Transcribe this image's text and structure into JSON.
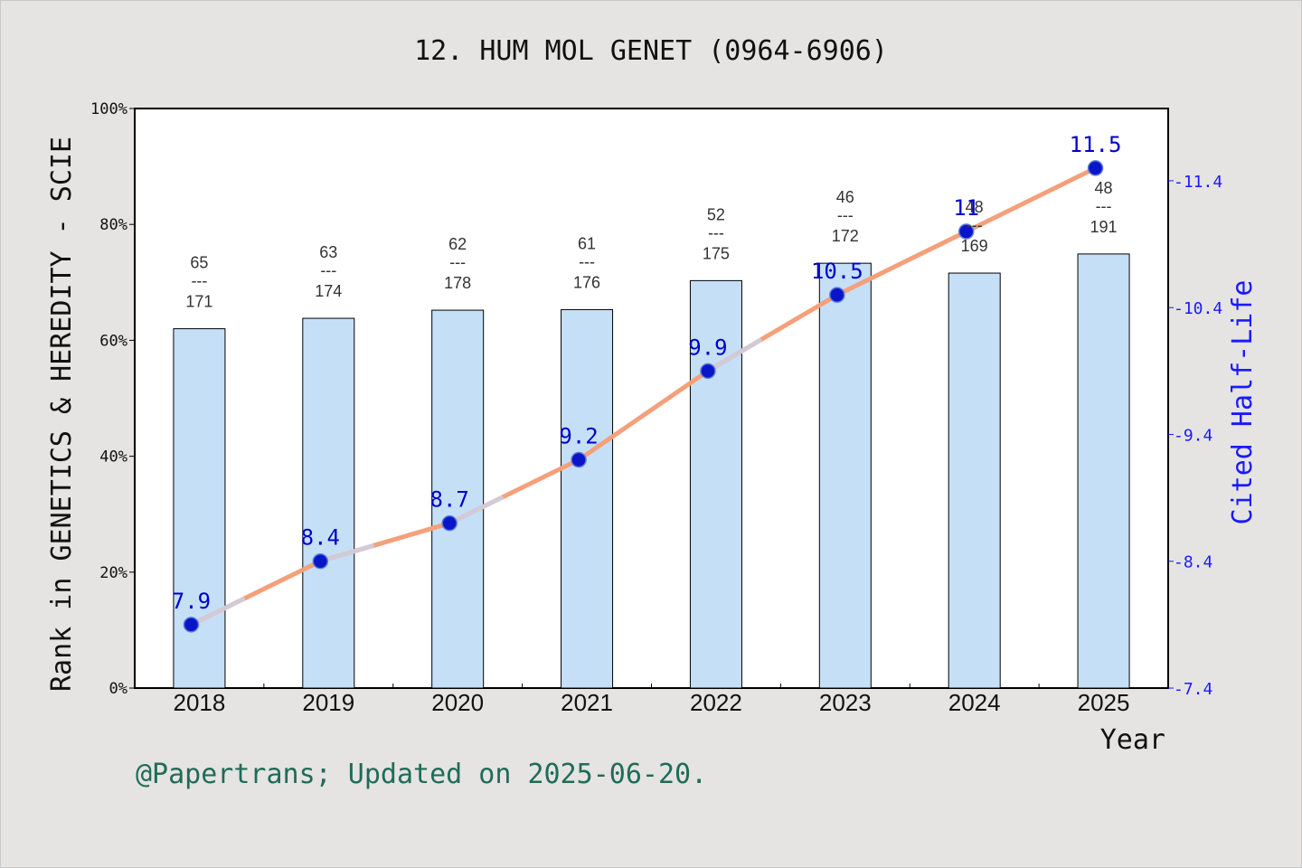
{
  "title": "12. HUM MOL GENET (0964-6906)",
  "footer": "@Papertrans; Updated on 2025-06-20.",
  "colors": {
    "bar_fill": "#c5dff7",
    "line": "#f4a07a",
    "line_light": "#cfcfe0",
    "marker": "#0a14c8",
    "right_axis": "#1a1aff",
    "background": "#e5e4e2"
  },
  "chart_data": {
    "type": "bar+line",
    "categories": [
      "2018",
      "2019",
      "2020",
      "2021",
      "2022",
      "2023",
      "2024",
      "2025"
    ],
    "xlabel": "Year",
    "ylabel": "Rank in GENETICS & HEREDITY - SCIE",
    "y2label": "Cited Half-Life",
    "ylim": [
      0,
      100
    ],
    "y2lim": [
      7.4,
      11.97
    ],
    "yticks": [
      "0%",
      "20%",
      "40%",
      "60%",
      "80%",
      "100%"
    ],
    "y2ticks": [
      "7.4",
      "8.4",
      "9.4",
      "10.4",
      "11.4"
    ],
    "rank_separator": "---",
    "bars": {
      "name": "Rank percentile",
      "values": [
        62.0,
        63.8,
        65.2,
        65.3,
        70.3,
        73.3,
        71.6,
        74.9
      ]
    },
    "rank_labels": [
      {
        "rank": "65",
        "total": "171"
      },
      {
        "rank": "63",
        "total": "174"
      },
      {
        "rank": "62",
        "total": "178"
      },
      {
        "rank": "61",
        "total": "176"
      },
      {
        "rank": "52",
        "total": "175"
      },
      {
        "rank": "46",
        "total": "172"
      },
      {
        "rank": "48",
        "total": "169"
      },
      {
        "rank": "48",
        "total": "191"
      }
    ],
    "line": {
      "name": "Cited Half-Life",
      "values": [
        7.9,
        8.4,
        8.7,
        9.2,
        9.9,
        10.5,
        11,
        11.5
      ],
      "labels": [
        "7.9",
        "8.4",
        "8.7",
        "9.2",
        "9.9",
        "10.5",
        "11",
        "11.5"
      ]
    },
    "grid": false
  }
}
